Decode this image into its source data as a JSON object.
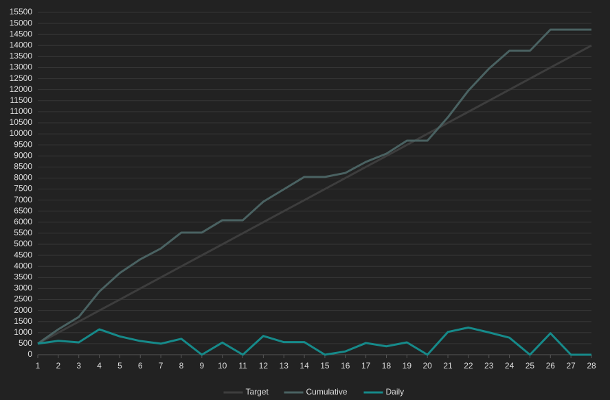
{
  "chart_data": {
    "type": "line",
    "x": [
      1,
      2,
      3,
      4,
      5,
      6,
      7,
      8,
      9,
      10,
      11,
      12,
      13,
      14,
      15,
      16,
      17,
      18,
      19,
      20,
      21,
      22,
      23,
      24,
      25,
      26,
      27,
      28
    ],
    "xlim": [
      1,
      28
    ],
    "ylim": [
      0,
      15500
    ],
    "yticks": [
      0,
      500,
      1000,
      1500,
      2000,
      2500,
      3000,
      3500,
      4000,
      4500,
      5000,
      5500,
      6000,
      6500,
      7000,
      7500,
      8000,
      8500,
      9000,
      9500,
      10000,
      10500,
      11000,
      11500,
      12000,
      12500,
      13000,
      13500,
      14000,
      14500,
      15000,
      15500
    ],
    "grid": true,
    "legend": "bottom",
    "series": [
      {
        "name": "Target",
        "color": "#3d3d3d",
        "values": [
          500,
          1000,
          1500,
          2000,
          2500,
          3000,
          3500,
          4000,
          4500,
          5000,
          5500,
          6000,
          6500,
          7000,
          7500,
          8000,
          8500,
          9000,
          9500,
          10000,
          10500,
          11000,
          11500,
          12000,
          12500,
          13000,
          13500,
          14000
        ]
      },
      {
        "name": "Cumulative",
        "color": "#4a6262",
        "values": [
          500,
          1150,
          1710,
          2860,
          3700,
          4320,
          4810,
          5530,
          5530,
          6090,
          6090,
          6930,
          7490,
          8050,
          8050,
          8230,
          8730,
          9100,
          9690,
          9690,
          10750,
          11960,
          12950,
          13760,
          13760,
          14720,
          14720,
          14720
        ]
      },
      {
        "name": "Daily",
        "color": "#168a8a",
        "values": [
          500,
          630,
          560,
          1150,
          830,
          620,
          500,
          720,
          0,
          550,
          0,
          850,
          570,
          570,
          0,
          150,
          530,
          380,
          560,
          0,
          1030,
          1230,
          1010,
          770,
          0,
          970,
          0,
          0
        ]
      }
    ]
  }
}
